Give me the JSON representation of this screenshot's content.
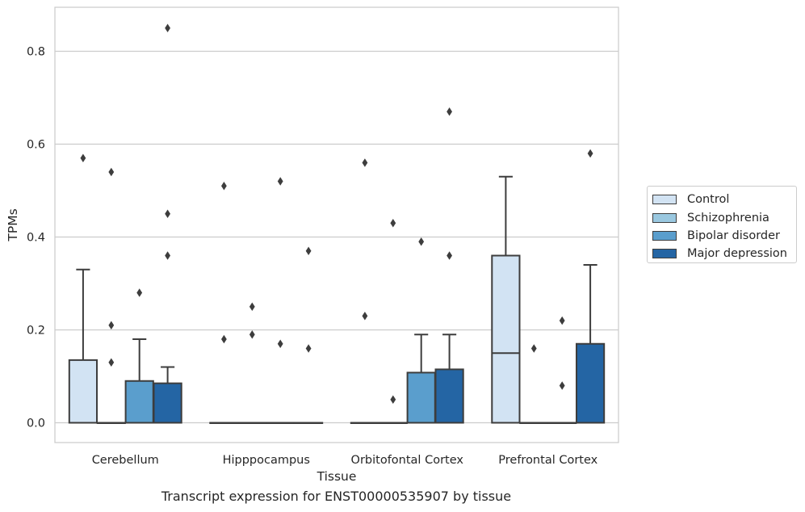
{
  "chart_data": {
    "type": "box",
    "xlabel": "Tissue",
    "ylabel": "TPMs",
    "caption": "Transcript expression for ENST00000535907 by tissue",
    "ylim": [
      -0.04,
      0.89
    ],
    "yticks": [
      0.0,
      0.2,
      0.4,
      0.6,
      0.8
    ],
    "ytick_labels": [
      "0.0",
      "0.2",
      "0.4",
      "0.6",
      "0.8"
    ],
    "grid": "horizontal",
    "legend_position": "right",
    "categories": [
      "Cerebellum",
      "Hipppocampus",
      "Orbitofontal Cortex",
      "Prefrontal Cortex"
    ],
    "series": [
      {
        "name": "Control",
        "color": "#d2e3f3",
        "boxes": [
          {
            "q1": 0.0,
            "median": 0.0,
            "q3": 0.135,
            "whisker_low": 0.0,
            "whisker_high": 0.33,
            "outliers": [
              0.57
            ]
          },
          {
            "q1": 0.0,
            "median": 0.0,
            "q3": 0.0,
            "whisker_low": 0.0,
            "whisker_high": 0.0,
            "outliers": [
              0.51,
              0.18
            ]
          },
          {
            "q1": 0.0,
            "median": 0.0,
            "q3": 0.0,
            "whisker_low": 0.0,
            "whisker_high": 0.0,
            "outliers": [
              0.56,
              0.23
            ]
          },
          {
            "q1": 0.0,
            "median": 0.15,
            "q3": 0.36,
            "whisker_low": 0.0,
            "whisker_high": 0.53,
            "outliers": []
          }
        ]
      },
      {
        "name": "Schizophrenia",
        "color": "#9ac8e0",
        "boxes": [
          {
            "q1": 0.0,
            "median": 0.0,
            "q3": 0.0,
            "whisker_low": 0.0,
            "whisker_high": 0.0,
            "outliers": [
              0.54,
              0.21,
              0.13
            ]
          },
          {
            "q1": 0.0,
            "median": 0.0,
            "q3": 0.0,
            "whisker_low": 0.0,
            "whisker_high": 0.0,
            "outliers": [
              0.25,
              0.19
            ]
          },
          {
            "q1": 0.0,
            "median": 0.0,
            "q3": 0.0,
            "whisker_low": 0.0,
            "whisker_high": 0.0,
            "outliers": [
              0.43,
              0.05
            ]
          },
          {
            "q1": 0.0,
            "median": 0.0,
            "q3": 0.0,
            "whisker_low": 0.0,
            "whisker_high": 0.0,
            "outliers": [
              0.16
            ]
          }
        ]
      },
      {
        "name": "Bipolar disorder",
        "color": "#5a9ecd",
        "boxes": [
          {
            "q1": 0.0,
            "median": 0.0,
            "q3": 0.09,
            "whisker_low": 0.0,
            "whisker_high": 0.18,
            "outliers": [
              0.28
            ]
          },
          {
            "q1": 0.0,
            "median": 0.0,
            "q3": 0.0,
            "whisker_low": 0.0,
            "whisker_high": 0.0,
            "outliers": [
              0.52,
              0.17
            ]
          },
          {
            "q1": 0.0,
            "median": 0.0,
            "q3": 0.108,
            "whisker_low": 0.0,
            "whisker_high": 0.19,
            "outliers": [
              0.39
            ]
          },
          {
            "q1": 0.0,
            "median": 0.0,
            "q3": 0.0,
            "whisker_low": 0.0,
            "whisker_high": 0.0,
            "outliers": [
              0.22,
              0.08
            ]
          }
        ]
      },
      {
        "name": "Major depression",
        "color": "#2465a4",
        "boxes": [
          {
            "q1": 0.0,
            "median": 0.0,
            "q3": 0.085,
            "whisker_low": 0.0,
            "whisker_high": 0.12,
            "outliers": [
              0.85,
              0.45,
              0.36
            ]
          },
          {
            "q1": 0.0,
            "median": 0.0,
            "q3": 0.0,
            "whisker_low": 0.0,
            "whisker_high": 0.0,
            "outliers": [
              0.37,
              0.16
            ]
          },
          {
            "q1": 0.0,
            "median": 0.0,
            "q3": 0.115,
            "whisker_low": 0.0,
            "whisker_high": 0.19,
            "outliers": [
              0.67,
              0.36
            ]
          },
          {
            "q1": 0.0,
            "median": 0.0,
            "q3": 0.17,
            "whisker_low": 0.0,
            "whisker_high": 0.34,
            "outliers": [
              0.58
            ]
          }
        ]
      }
    ]
  }
}
